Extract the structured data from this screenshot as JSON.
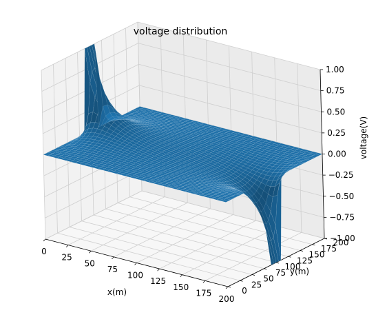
{
  "chart_data": {
    "type": "surface3d",
    "title": "voltage distribution",
    "xlabel": "x(m)",
    "ylabel": "y(m)",
    "zlabel": "voltage(V)",
    "xlim": [
      0,
      200
    ],
    "ylim": [
      0,
      200
    ],
    "zlim": [
      -1.0,
      1.0
    ],
    "x_ticks": [
      "0",
      "25",
      "50",
      "75",
      "100",
      "125",
      "150",
      "175",
      "200"
    ],
    "y_ticks": [
      "0",
      "25",
      "50",
      "75",
      "100",
      "125",
      "150",
      "175",
      "200"
    ],
    "z_ticks": [
      "−1.00",
      "−0.75",
      "−0.50",
      "−0.25",
      "0.00",
      "0.25",
      "0.50",
      "0.75",
      "1.00"
    ],
    "grid": true,
    "surface": {
      "description_values": {
        "boundary_positive_segment": {
          "edge": "x=0",
          "y_range": [
            90,
            110
          ],
          "value": 1.0
        },
        "boundary_negative_segment": {
          "edge": "x=200",
          "y_range": [
            90,
            110
          ],
          "value": -1.0
        },
        "elsewhere_boundary_value": 0.0
      },
      "color": "#1f77b4"
    }
  }
}
